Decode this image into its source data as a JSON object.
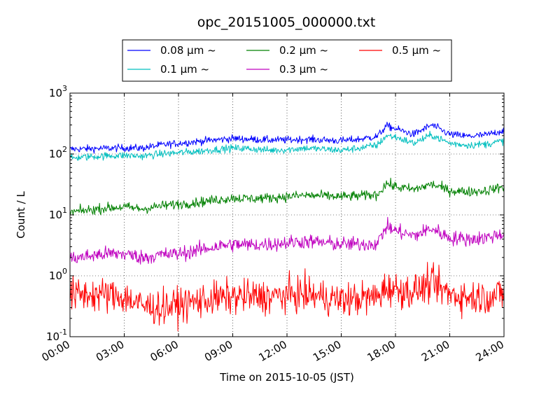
{
  "chart_data": {
    "type": "line",
    "title": "opc_20151005_000000.txt",
    "xlabel": "Time on 2015-10-05 (JST)",
    "ylabel": "Count / L",
    "x_range_hours": [
      0,
      24
    ],
    "ylim": [
      0.1,
      1000
    ],
    "y_scale": "log",
    "grid": true,
    "legend_position": "top-center",
    "x_tick_labels": [
      "00:00",
      "03:00",
      "06:00",
      "09:00",
      "12:00",
      "15:00",
      "18:00",
      "21:00",
      "24:00"
    ],
    "y_tick_labels": [
      {
        "base": "10",
        "exp": "-1"
      },
      {
        "base": "10",
        "exp": "0"
      },
      {
        "base": "10",
        "exp": "1"
      },
      {
        "base": "10",
        "exp": "2"
      },
      {
        "base": "10",
        "exp": "3"
      }
    ],
    "series": [
      {
        "name": "0.08 μm ~",
        "color": "#0000ff",
        "noise": 0.03,
        "x": [
          0,
          1,
          2,
          3,
          4,
          5,
          6,
          7,
          8,
          9,
          10,
          11,
          12,
          13,
          14,
          15,
          16,
          17,
          17.5,
          18,
          19,
          20,
          21,
          22,
          23,
          24
        ],
        "y": [
          120,
          122,
          124,
          126,
          125,
          140,
          150,
          160,
          170,
          180,
          175,
          170,
          170,
          175,
          170,
          165,
          175,
          195,
          290,
          260,
          210,
          300,
          210,
          195,
          205,
          245
        ]
      },
      {
        "name": "0.1 μm ~",
        "color": "#00bfbf",
        "noise": 0.03,
        "x": [
          0,
          1,
          2,
          3,
          4,
          5,
          6,
          7,
          8,
          9,
          10,
          11,
          12,
          13,
          14,
          15,
          16,
          17,
          17.5,
          18,
          19,
          20,
          21,
          22,
          23,
          24
        ],
        "y": [
          85,
          90,
          93,
          95,
          92,
          100,
          105,
          110,
          118,
          125,
          122,
          115,
          118,
          125,
          120,
          115,
          125,
          140,
          200,
          190,
          150,
          205,
          150,
          140,
          145,
          165
        ]
      },
      {
        "name": "0.2 μm ~",
        "color": "#008000",
        "noise": 0.04,
        "x": [
          0,
          1,
          2,
          3,
          4,
          5,
          6,
          7,
          8,
          9,
          10,
          11,
          12,
          13,
          14,
          15,
          16,
          17,
          17.5,
          18,
          19,
          20,
          21,
          22,
          23,
          24
        ],
        "y": [
          11,
          12,
          13,
          13.5,
          12.5,
          14,
          15,
          16,
          17.5,
          19,
          18.5,
          19,
          20,
          21,
          20.5,
          20,
          20.5,
          21.5,
          33,
          29,
          26,
          32,
          25,
          24,
          25,
          29
        ]
      },
      {
        "name": "0.3 μm ~",
        "color": "#bf00bf",
        "noise": 0.06,
        "x": [
          0,
          1,
          2,
          3,
          4,
          5,
          6,
          7,
          8,
          9,
          10,
          11,
          12,
          13,
          14,
          15,
          16,
          17,
          17.5,
          18,
          19,
          20,
          21,
          22,
          23,
          24
        ],
        "y": [
          1.9,
          2.1,
          2.3,
          2.3,
          2.0,
          2.2,
          2.3,
          2.6,
          3.0,
          3.3,
          3.2,
          3.3,
          3.5,
          3.7,
          3.5,
          3.3,
          3.3,
          3.4,
          6.5,
          5.5,
          4.5,
          6.0,
          4.2,
          4.0,
          4.2,
          5.0
        ]
      },
      {
        "name": "0.5 μm ~",
        "color": "#ff0000",
        "noise": 0.14,
        "x": [
          0,
          1,
          2,
          3,
          4,
          5,
          6,
          7,
          8,
          9,
          10,
          11,
          12,
          13,
          14,
          15,
          16,
          17,
          17.5,
          18,
          19,
          20,
          21,
          22,
          23,
          24
        ],
        "y": [
          0.48,
          0.5,
          0.48,
          0.45,
          0.32,
          0.3,
          0.33,
          0.38,
          0.42,
          0.45,
          0.45,
          0.45,
          0.48,
          0.5,
          0.45,
          0.4,
          0.42,
          0.45,
          0.65,
          0.6,
          0.55,
          0.75,
          0.5,
          0.45,
          0.45,
          0.5
        ]
      }
    ]
  }
}
